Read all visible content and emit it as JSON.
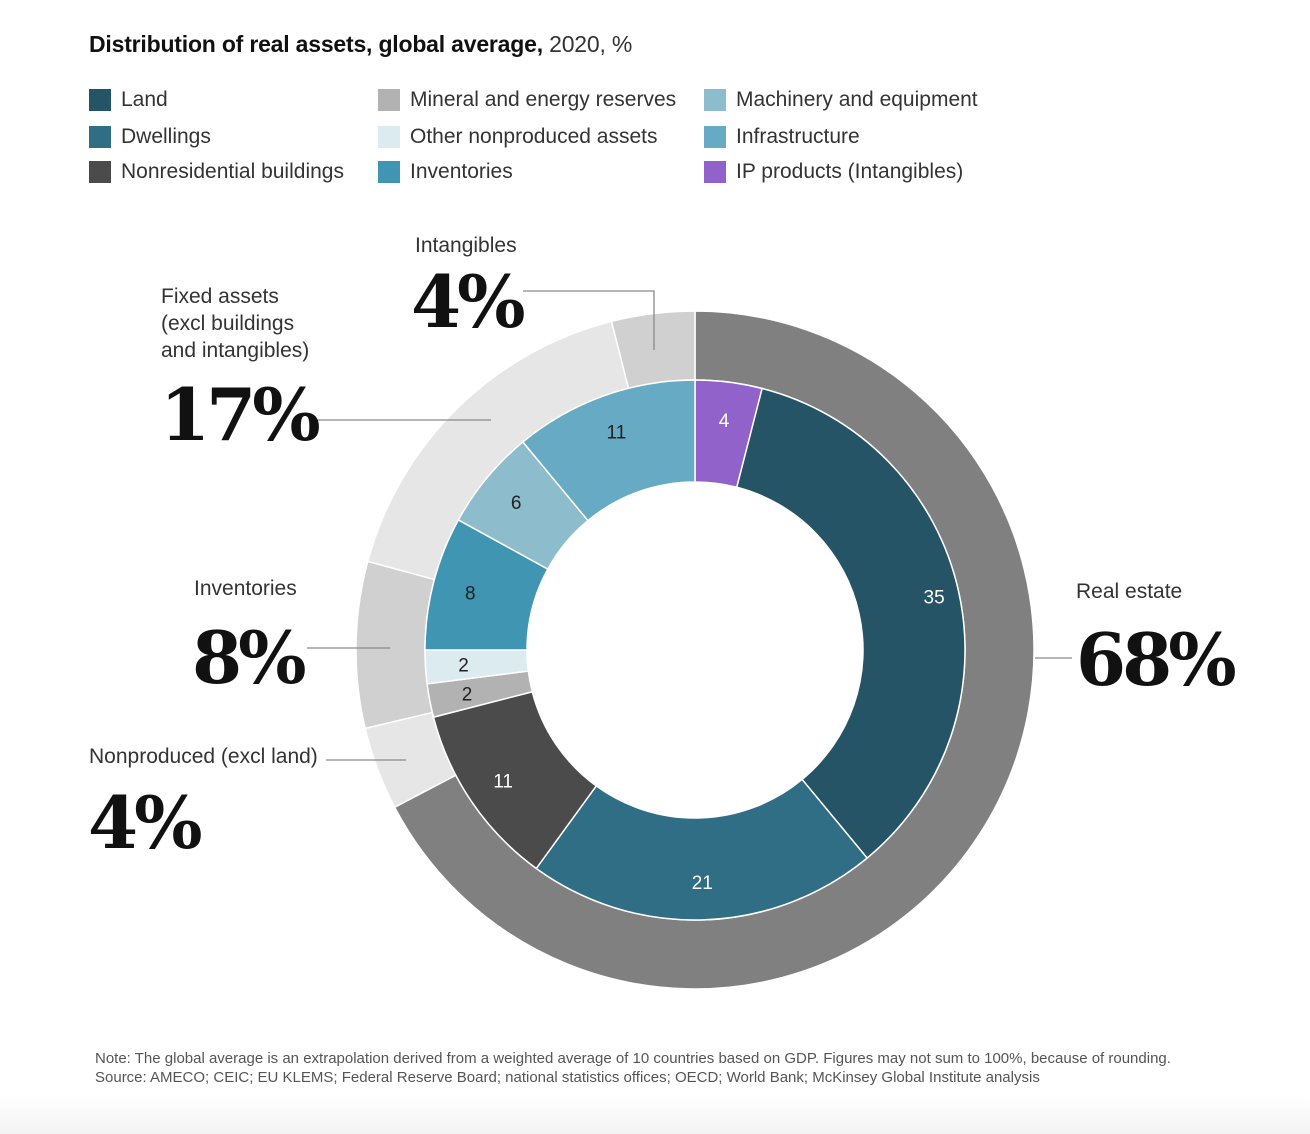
{
  "title": {
    "bold": "Distribution of real assets, global average,",
    "light": " 2020, %"
  },
  "legend": [
    {
      "label": "Land",
      "color": "#245466"
    },
    {
      "label": "Dwellings",
      "color": "#2f6e84"
    },
    {
      "label": "Nonresidential buildings",
      "color": "#4b4b4b"
    },
    {
      "label": "Mineral and energy reserves",
      "color": "#b2b2b2"
    },
    {
      "label": "Other nonproduced assets",
      "color": "#dcebf0"
    },
    {
      "label": "Inventories",
      "color": "#4096b2"
    },
    {
      "label": "Machinery and equipment",
      "color": "#8dbccd"
    },
    {
      "label": "Infrastructure",
      "color": "#66aac3"
    },
    {
      "label": "IP products (Intangibles)",
      "color": "#9162c9"
    }
  ],
  "chart_data": {
    "type": "pie",
    "variant": "nested-donut",
    "inner_ring": [
      {
        "label": "IP products (Intangibles)",
        "value": 4,
        "color": "#9162c9"
      },
      {
        "label": "Land",
        "value": 35,
        "color": "#245466"
      },
      {
        "label": "Dwellings",
        "value": 21,
        "color": "#2f6e84"
      },
      {
        "label": "Nonresidential buildings",
        "value": 11,
        "color": "#4b4b4b"
      },
      {
        "label": "Mineral and energy reserves",
        "value": 2,
        "color": "#b2b2b2"
      },
      {
        "label": "Other nonproduced assets",
        "value": 2,
        "color": "#dcebf0"
      },
      {
        "label": "Inventories",
        "value": 8,
        "color": "#4096b2"
      },
      {
        "label": "Machinery and equipment",
        "value": 6,
        "color": "#8dbccd"
      },
      {
        "label": "Infrastructure",
        "value": 11,
        "color": "#66aac3"
      }
    ],
    "inner_labels": [
      "4",
      "35",
      "21",
      "11",
      "2",
      "2",
      "8",
      "6",
      "11"
    ],
    "outer_ring": [
      {
        "key": "real-estate",
        "label": "Real estate",
        "pct_label": "68%",
        "value": 68,
        "color": "#808080"
      },
      {
        "key": "nonproduced",
        "label": "Nonproduced (excl land)",
        "pct_label": "4%",
        "value": 4,
        "color": "#e6e6e6"
      },
      {
        "key": "inventories",
        "label": "Inventories",
        "pct_label": "8%",
        "value": 8,
        "color": "#d0d0d0"
      },
      {
        "key": "fixed-assets",
        "label": "Fixed assets\n(excl buildings\nand intangibles)",
        "pct_label": "17%",
        "value": 17,
        "color": "#e6e6e6"
      },
      {
        "key": "intangibles",
        "label": "Intangibles",
        "pct_label": "4%",
        "value": 4,
        "color": "#d0d0d0"
      }
    ]
  },
  "note": {
    "note_text": "Note: The global average is an extrapolation derived from a weighted average of 10 countries based on GDP. Figures may not sum to 100%, because of rounding.",
    "source_text": "Source: AMECO; CEIC; EU KLEMS; Federal Reserve Board; national statistics offices; OECD; World Bank; McKinsey Global Institute analysis"
  }
}
